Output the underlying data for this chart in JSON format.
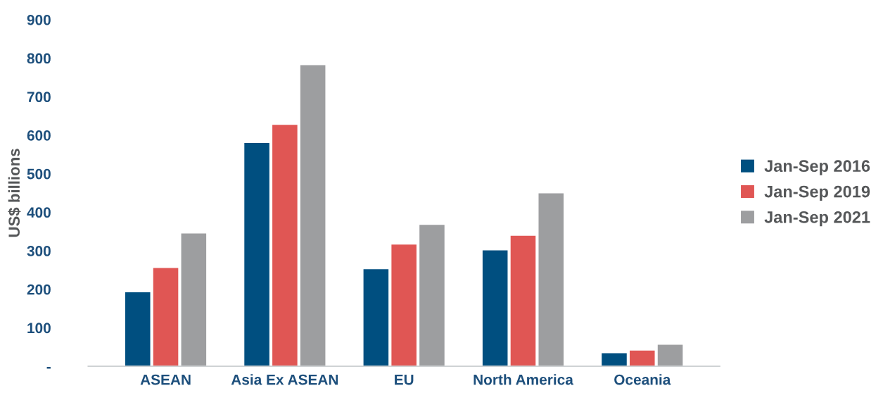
{
  "chart_data": {
    "type": "bar",
    "ylabel": "US$ billions",
    "categories": [
      "ASEAN",
      "Asia Ex ASEAN",
      "EU",
      "North America",
      "Oceania"
    ],
    "series": [
      {
        "name": "Jan-Sep 2016",
        "color": "#004f80",
        "values": [
          192,
          580,
          252,
          301,
          34
        ]
      },
      {
        "name": "Jan-Sep 2019",
        "color": "#e05654",
        "values": [
          255,
          627,
          316,
          339,
          41
        ]
      },
      {
        "name": "Jan-Sep 2021",
        "color": "#9d9ea0",
        "values": [
          345,
          782,
          367,
          449,
          56
        ]
      }
    ],
    "ylim": [
      0,
      900
    ],
    "yticks": [
      {
        "value": 0,
        "label": "-"
      },
      100,
      200,
      300,
      400,
      500,
      600,
      700,
      800,
      900
    ],
    "grid": false,
    "legend": "right"
  }
}
